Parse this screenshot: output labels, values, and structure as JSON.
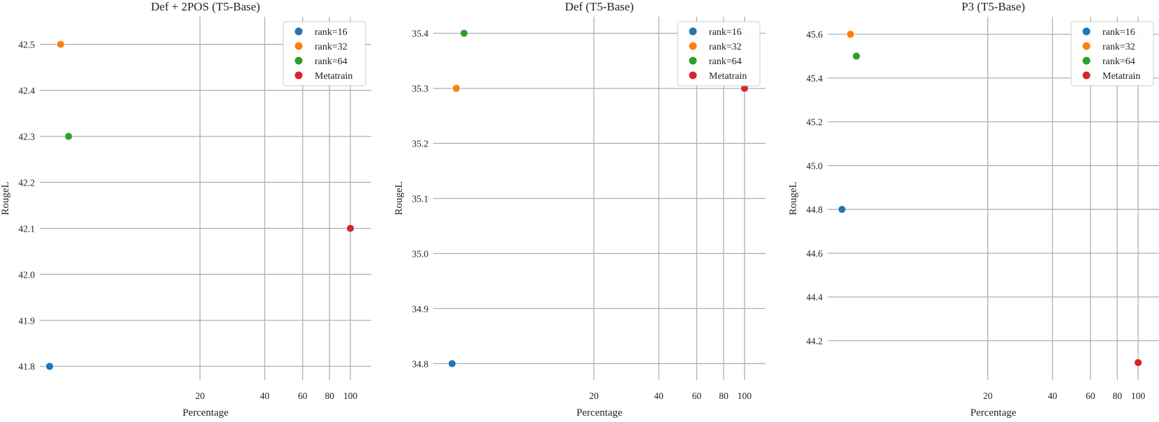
{
  "colors": {
    "rank=16": "#1f77b4",
    "rank=32": "#ff7f0e",
    "rank=64": "#2ca02c",
    "Metatrain": "#d62728",
    "grid": "#b0b0b0",
    "legend_border": "#cccccc"
  },
  "chart_data": [
    {
      "type": "scatter",
      "title": "Def + 2POS (T5-Base)",
      "xlabel": "Percentage",
      "ylabel": "RougeL",
      "x_scale": "log",
      "xlim": [
        3.6,
        125
      ],
      "ylim": [
        41.77,
        42.56
      ],
      "x_ticks": [
        20,
        40,
        60,
        80,
        100
      ],
      "y_ticks": [
        41.8,
        41.9,
        42.0,
        42.1,
        42.2,
        42.3,
        42.4,
        42.5
      ],
      "y_tick_labels": [
        "41.8",
        "41.9",
        "42.0",
        "42.1",
        "42.2",
        "42.3",
        "42.4",
        "42.5"
      ],
      "grid": true,
      "legend_position": "top-right",
      "series": [
        {
          "name": "rank=16",
          "points": [
            {
              "x": 4,
              "y": 41.8
            }
          ]
        },
        {
          "name": "rank=32",
          "points": [
            {
              "x": 4.5,
              "y": 42.5
            }
          ]
        },
        {
          "name": "rank=64",
          "points": [
            {
              "x": 4.9,
              "y": 42.3
            }
          ]
        },
        {
          "name": "Metatrain",
          "points": [
            {
              "x": 100,
              "y": 42.1
            }
          ]
        }
      ]
    },
    {
      "type": "scatter",
      "title": "Def (T5-Base)",
      "xlabel": "Percentage",
      "ylabel": "RougeL",
      "x_scale": "log",
      "xlim": [
        3.6,
        125
      ],
      "ylim": [
        34.77,
        35.43
      ],
      "x_ticks": [
        20,
        40,
        60,
        80,
        100
      ],
      "y_ticks": [
        34.8,
        34.9,
        35.0,
        35.1,
        35.2,
        35.3,
        35.4
      ],
      "y_tick_labels": [
        "34.8",
        "34.9",
        "35.0",
        "35.1",
        "35.2",
        "35.3",
        "35.4"
      ],
      "grid": true,
      "legend_position": "top-right",
      "series": [
        {
          "name": "rank=16",
          "points": [
            {
              "x": 4.4,
              "y": 34.8
            }
          ]
        },
        {
          "name": "rank=32",
          "points": [
            {
              "x": 4.6,
              "y": 35.3
            }
          ]
        },
        {
          "name": "rank=64",
          "points": [
            {
              "x": 5.0,
              "y": 35.4
            }
          ]
        },
        {
          "name": "Metatrain",
          "points": [
            {
              "x": 100,
              "y": 35.3
            }
          ]
        }
      ]
    },
    {
      "type": "scatter",
      "title": "P3 (T5-Base)",
      "xlabel": "Percentage",
      "ylabel": "RougeL",
      "x_scale": "log",
      "xlim": [
        3.6,
        125
      ],
      "ylim": [
        44.02,
        45.68
      ],
      "x_ticks": [
        20,
        40,
        60,
        80,
        100
      ],
      "y_ticks": [
        44.2,
        44.4,
        44.6,
        44.8,
        45.0,
        45.2,
        45.4,
        45.6
      ],
      "y_tick_labels": [
        "44.2",
        "44.4",
        "44.6",
        "44.8",
        "45.0",
        "45.2",
        "45.4",
        "45.6"
      ],
      "grid": true,
      "legend_position": "top-right",
      "series": [
        {
          "name": "rank=16",
          "points": [
            {
              "x": 4.2,
              "y": 44.8
            }
          ]
        },
        {
          "name": "rank=32",
          "points": [
            {
              "x": 4.6,
              "y": 45.6
            }
          ]
        },
        {
          "name": "rank=64",
          "points": [
            {
              "x": 4.9,
              "y": 45.5
            }
          ]
        },
        {
          "name": "Metatrain",
          "points": [
            {
              "x": 100,
              "y": 44.1
            }
          ]
        }
      ]
    }
  ]
}
